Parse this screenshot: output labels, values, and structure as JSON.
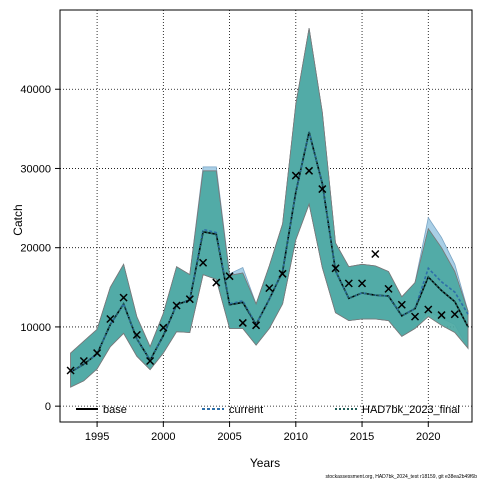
{
  "chart_data": {
    "type": "line",
    "xlabel": "Years",
    "ylabel": "Catch",
    "xlim": [
      1992.2,
      2023.3
    ],
    "ylim": [
      -2000,
      50000
    ],
    "x_ticks": [
      1995,
      2000,
      2005,
      2010,
      2015,
      2020
    ],
    "y_ticks": [
      0,
      10000,
      20000,
      30000,
      40000
    ],
    "grid": true,
    "legend_position": "bottom",
    "colors": {
      "band_main": "#4ba8a2",
      "band_main_border": "#7a7a7a",
      "band_other": "#a9cfe6",
      "band_other_border": "#7aa4c4",
      "line": "#000000",
      "current_line": "#2e6fa8",
      "final_line": "#1f5c57"
    },
    "years": [
      1993,
      1994,
      1995,
      1996,
      1997,
      1998,
      1999,
      2000,
      2001,
      2002,
      2003,
      2004,
      2005,
      2006,
      2007,
      2008,
      2009,
      2010,
      2011,
      2012,
      2013,
      2014,
      2015,
      2016,
      2017,
      2018,
      2019,
      2020,
      2021,
      2022,
      2023
    ],
    "series": [
      {
        "name": "base",
        "values": [
          4300,
          5300,
          6600,
          10300,
          12900,
          8500,
          5800,
          8900,
          12800,
          13400,
          22000,
          21700,
          12800,
          13100,
          10300,
          13500,
          17000,
          27000,
          34600,
          28100,
          17100,
          13600,
          14300,
          14000,
          13900,
          11400,
          12300,
          16300,
          14600,
          13200,
          10000
        ],
        "lower": [
          2400,
          3200,
          4700,
          7500,
          9200,
          6300,
          4600,
          6700,
          9400,
          9300,
          16600,
          16000,
          9800,
          9800,
          7700,
          9800,
          12900,
          21000,
          25500,
          17500,
          11800,
          10800,
          11000,
          11000,
          10800,
          8800,
          9800,
          11300,
          10200,
          9300,
          7300
        ],
        "upper": [
          6700,
          8200,
          9700,
          15000,
          17900,
          11300,
          7500,
          11700,
          17600,
          16600,
          29700,
          29700,
          16500,
          16800,
          12900,
          17700,
          23000,
          38100,
          47700,
          37100,
          20600,
          17600,
          17900,
          17700,
          17000,
          13800,
          15600,
          22400,
          20000,
          17000,
          12000
        ]
      },
      {
        "name": "current",
        "values": [
          4300,
          5300,
          6600,
          10300,
          12900,
          8500,
          5800,
          8900,
          12800,
          13400,
          22300,
          21900,
          12900,
          13300,
          10300,
          13500,
          17000,
          27000,
          34600,
          28100,
          17100,
          13600,
          14300,
          14000,
          13900,
          11400,
          12300,
          17400,
          15700,
          14400,
          11600
        ],
        "lower": [
          2400,
          3200,
          4700,
          7500,
          9200,
          6300,
          4600,
          6700,
          9400,
          9300,
          16600,
          16000,
          9800,
          9800,
          7700,
          9800,
          12900,
          21000,
          25500,
          17500,
          11800,
          10800,
          11000,
          11000,
          10800,
          8800,
          9800,
          12000,
          11100,
          10300,
          7300
        ],
        "upper": [
          6700,
          8200,
          9700,
          15000,
          17900,
          11300,
          7500,
          11700,
          17600,
          16600,
          30200,
          30200,
          16700,
          17500,
          12900,
          17700,
          23000,
          38100,
          47700,
          37100,
          20600,
          17600,
          17900,
          17700,
          17000,
          13800,
          15600,
          23800,
          21300,
          17900,
          12000
        ]
      },
      {
        "name": "HAD7bk_2023_final",
        "values": [
          4300,
          5300,
          6600,
          10300,
          12900,
          8500,
          5800,
          8900,
          12800,
          13400,
          22000,
          21700,
          12800,
          13100,
          10300,
          13500,
          17000,
          27000,
          34600,
          28100,
          17100,
          13600,
          14300,
          14000,
          13900,
          11400,
          12300,
          16300,
          14600,
          13200,
          10000
        ],
        "lower": [
          2400,
          3200,
          4700,
          7500,
          9200,
          6300,
          4600,
          6700,
          9400,
          9300,
          16600,
          16000,
          9800,
          9800,
          7700,
          9800,
          12900,
          21000,
          25500,
          17500,
          11800,
          10800,
          11000,
          11000,
          10800,
          8800,
          9800,
          11300,
          10200,
          9300,
          7300
        ],
        "upper": [
          6700,
          8200,
          9700,
          15000,
          17900,
          11300,
          7500,
          11700,
          17600,
          16600,
          29700,
          29700,
          16500,
          16800,
          12900,
          17700,
          23000,
          38100,
          47700,
          37100,
          20600,
          17600,
          17900,
          17700,
          17000,
          13800,
          15600,
          22400,
          20000,
          17000,
          12000
        ]
      }
    ],
    "observed": {
      "years": [
        1993,
        1994,
        1995,
        1996,
        1997,
        1998,
        1999,
        2000,
        2001,
        2002,
        2003,
        2004,
        2005,
        2006,
        2007,
        2008,
        2009,
        2010,
        2011,
        2012,
        2013,
        2014,
        2015,
        2016,
        2017,
        2018,
        2019,
        2020,
        2021,
        2022
      ],
      "values": [
        4500,
        5700,
        6700,
        11000,
        13700,
        9000,
        5700,
        9900,
        12700,
        13500,
        18100,
        15600,
        16400,
        10500,
        10200,
        14900,
        16700,
        29100,
        29700,
        27400,
        17400,
        15500,
        15500,
        19200,
        14800,
        12800,
        11300,
        12200,
        11500,
        11600
      ]
    },
    "caption": "stockassessment.org, HAD7bk_2024_test r18159, git e38ea2b49f6b"
  }
}
